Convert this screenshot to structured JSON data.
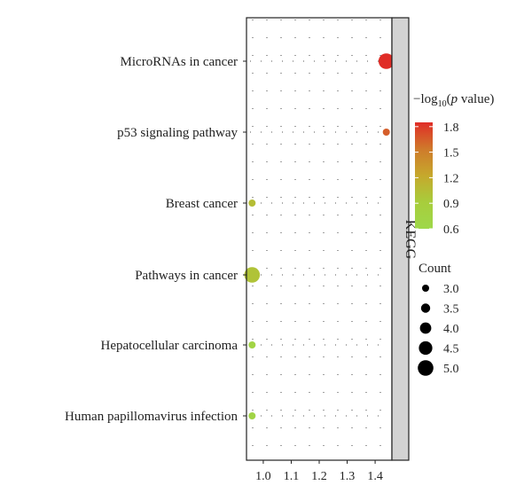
{
  "chart_data": {
    "type": "scatter",
    "categories": [
      "MicroRNAs in cancer",
      "p53 signaling pathway",
      "Breast cancer",
      "Pathways in cancer",
      "Hepatocellular carcinoma",
      "Human papillomavirus infection"
    ],
    "points": [
      {
        "category": "MicroRNAs in cancer",
        "x": 1.44,
        "count": 5,
        "neglog10p": 1.85
      },
      {
        "category": "p53 signaling pathway",
        "x": 1.44,
        "count": 3,
        "neglog10p": 1.65
      },
      {
        "category": "Breast cancer",
        "x": 0.96,
        "count": 3,
        "neglog10p": 1.05
      },
      {
        "category": "Pathways in cancer",
        "x": 0.96,
        "count": 5,
        "neglog10p": 1.0
      },
      {
        "category": "Hepatocellular carcinoma",
        "x": 0.96,
        "count": 3,
        "neglog10p": 0.72
      },
      {
        "category": "Human papillomavirus infection",
        "x": 0.96,
        "count": 3,
        "neglog10p": 0.7
      }
    ],
    "xticks": [
      "1.0",
      "1.1",
      "1.2",
      "1.3",
      "1.4"
    ],
    "xlim": [
      0.94,
      1.46
    ],
    "facet_label": "KEGG",
    "color_legend": {
      "title_prefix": "−log",
      "title_sub": "10",
      "title_paren_open": "(",
      "title_italic": "p",
      "title_suffix": " value)",
      "ticks": [
        "1.8",
        "1.5",
        "1.2",
        "0.9",
        "0.6"
      ],
      "range": [
        0.6,
        1.85
      ],
      "colors": [
        "#e02d27",
        "#cf7a2b",
        "#c6a82c",
        "#a8cd3c",
        "#9ed84a"
      ]
    },
    "size_legend": {
      "title": "Count",
      "ticks": [
        "3.0",
        "3.5",
        "4.0",
        "4.5",
        "5.0"
      ]
    },
    "grid": true
  }
}
